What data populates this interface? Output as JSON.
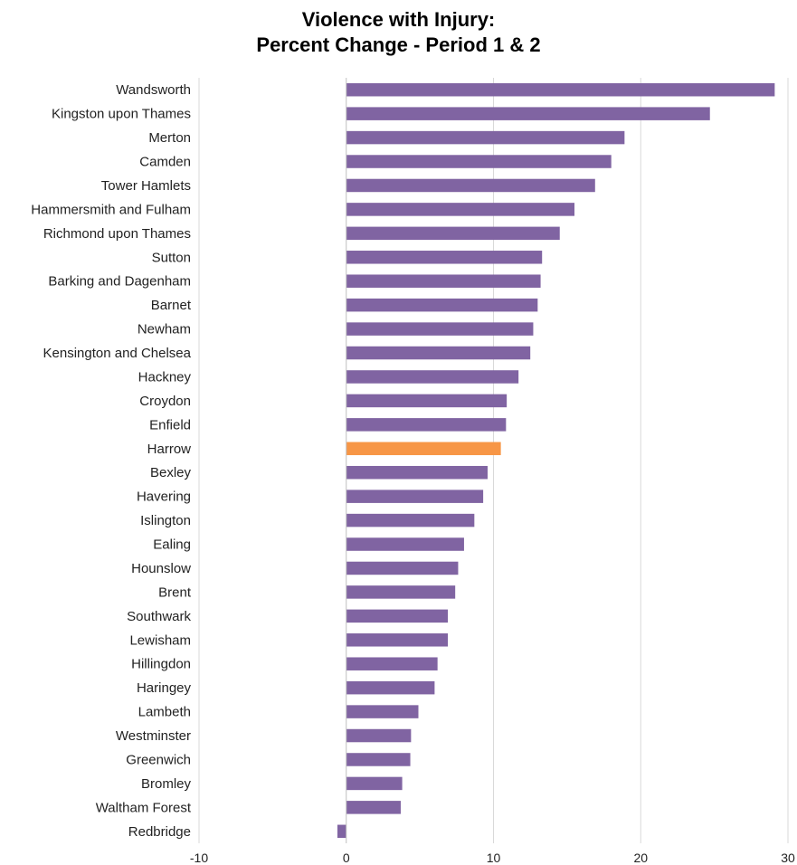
{
  "chart_data": {
    "type": "bar",
    "orientation": "horizontal",
    "title_lines": [
      "Violence with Injury:",
      "Percent Change - Period 1 & 2"
    ],
    "xlabel": "",
    "ylabel": "",
    "xlim": [
      -10,
      30
    ],
    "xticks": [
      -10,
      0,
      10,
      20,
      30
    ],
    "grid": "vertical",
    "legend": "none",
    "default_color": "#8064A2",
    "highlight_color": "#F79646",
    "highlight_category": "Harrow",
    "categories": [
      "Wandsworth",
      "Kingston upon Thames",
      "Merton",
      "Camden",
      "Tower Hamlets",
      "Hammersmith and Fulham",
      "Richmond upon Thames",
      "Sutton",
      "Barking and Dagenham",
      "Barnet",
      "Newham",
      "Kensington and Chelsea",
      "Hackney",
      "Croydon",
      "Enfield",
      "Harrow",
      "Bexley",
      "Havering",
      "Islington",
      "Ealing",
      "Hounslow",
      "Brent",
      "Southwark",
      "Lewisham",
      "Hillingdon",
      "Haringey",
      "Lambeth",
      "Westminster",
      "Greenwich",
      "Bromley",
      "Waltham Forest",
      "Redbridge"
    ],
    "values": [
      29.1,
      24.7,
      18.9,
      18.0,
      16.9,
      15.5,
      14.5,
      13.3,
      13.2,
      13.0,
      12.7,
      12.5,
      11.7,
      10.9,
      10.85,
      10.5,
      9.6,
      9.3,
      8.7,
      8.0,
      7.6,
      7.4,
      6.9,
      6.9,
      6.2,
      6.0,
      4.9,
      4.4,
      4.35,
      3.8,
      3.7,
      -0.6
    ]
  }
}
